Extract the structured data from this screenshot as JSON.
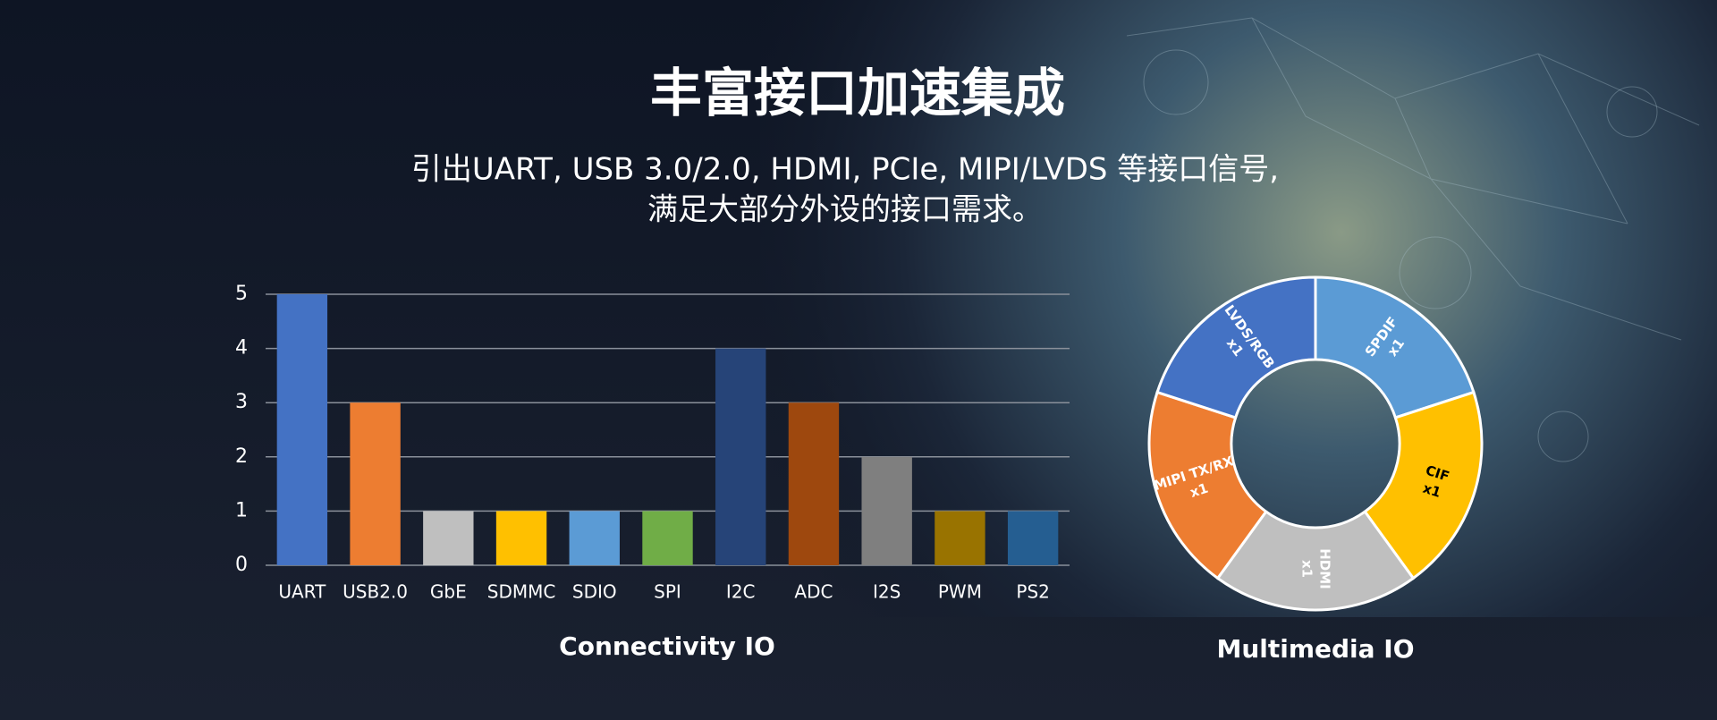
{
  "header": {
    "title": "丰富接口加速集成",
    "subtitle": [
      "引出UART, USB 3.0/2.0, HDMI, PCIe,  MIPI/LVDS 等接口信号,",
      "满足大部分外设的接口需求。"
    ]
  },
  "chart_data": [
    {
      "type": "bar",
      "title": "Connectivity IO",
      "categories": [
        "UART",
        "USB2.0",
        "GbE",
        "SDMMC",
        "SDIO",
        "SPI",
        "I2C",
        "ADC",
        "I2S",
        "PWM",
        "PS2"
      ],
      "values": [
        5,
        3,
        1,
        1,
        1,
        1,
        4,
        3,
        2,
        1,
        1
      ],
      "colors": [
        "#4472c4",
        "#ed7d31",
        "#bfbfbf",
        "#ffc000",
        "#5b9bd5",
        "#70ad47",
        "#264478",
        "#9e480e",
        "#7f7f7f",
        "#997300",
        "#255e91"
      ],
      "ylim": [
        0,
        5
      ],
      "yticks": [
        0,
        1,
        2,
        3,
        4,
        5
      ],
      "grid": true
    },
    {
      "type": "donut",
      "title": "Multimedia IO",
      "categories": [
        "SPDIF",
        "CIF",
        "HDMI",
        "MIPI TX/RX",
        "LVDS/RGB"
      ],
      "values": [
        1,
        1,
        1,
        1,
        1
      ],
      "value_labels": [
        "x1",
        "x1",
        "x1",
        "x1",
        "x1"
      ],
      "colors": [
        "#5b9bd5",
        "#ffc000",
        "#bfbfbf",
        "#ed7d31",
        "#4472c4"
      ],
      "label_colors": [
        "#ffffff",
        "#000000",
        "#ffffff",
        "#ffffff",
        "#ffffff"
      ]
    }
  ]
}
